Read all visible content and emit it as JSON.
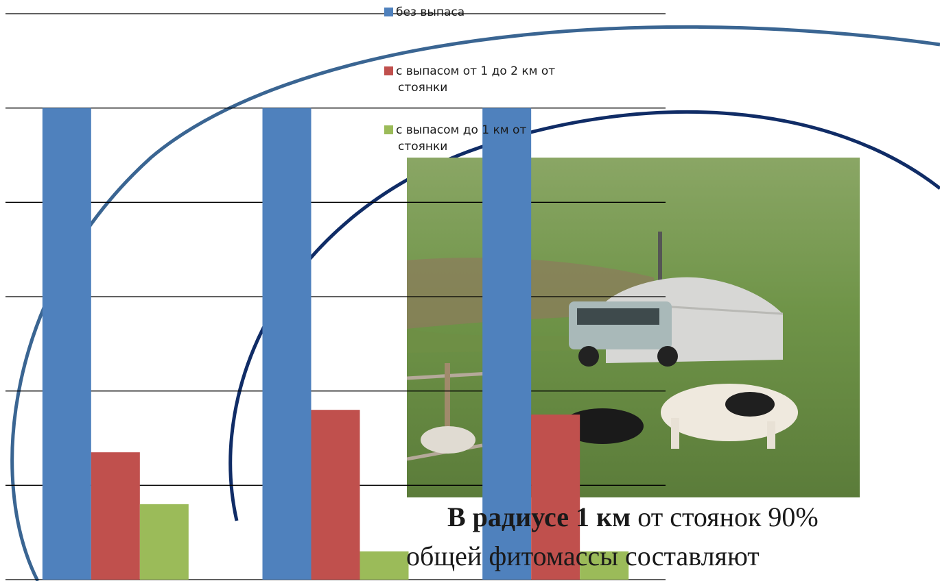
{
  "chart_data": {
    "type": "bar",
    "categories": [
      "",
      "",
      ""
    ],
    "series": [
      {
        "name": "без выпаса",
        "color": "#4f81bd",
        "values": [
          100,
          100,
          100
        ]
      },
      {
        "name": "с выпасом от 1 до 2 км от стоянки",
        "color": "#c0504d",
        "values": [
          27,
          36,
          35
        ]
      },
      {
        "name": "с выпасом до 1 км от стоянки",
        "color": "#9bbb59",
        "values": [
          16,
          6,
          6
        ]
      }
    ],
    "ylim": [
      0,
      120
    ],
    "grid": true,
    "legend": "top"
  },
  "legend": {
    "item1": "без выпаса",
    "item2_line1": "с выпасом от 1 до 2 км от",
    "item2_line2": "стоянки",
    "item3_line1": "с выпасом до 1 км от",
    "item3_line2": "стоянки"
  },
  "caption": {
    "line1_bold": "В радиусе 1 км",
    "line1_rest": " от стоянок 90%",
    "line2": "общей фитомассы составляют"
  },
  "photo": {
    "description_icon": "yurt-yak-photo"
  }
}
